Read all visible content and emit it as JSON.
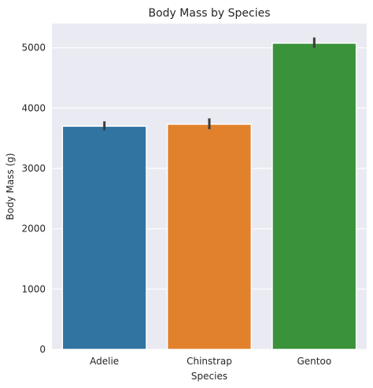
{
  "chart_data": {
    "type": "bar",
    "title": "Body Mass by Species",
    "xlabel": "Species",
    "ylabel": "Body Mass (g)",
    "categories": [
      "Adelie",
      "Chinstrap",
      "Gentoo"
    ],
    "values": [
      3700,
      3733,
      5076
    ],
    "error_bars": [
      [
        3630,
        3780
      ],
      [
        3650,
        3830
      ],
      [
        5000,
        5170
      ]
    ],
    "colors": [
      "#3274a1",
      "#e1812c",
      "#3a923a"
    ],
    "ylim": [
      0,
      5400
    ],
    "yticks": [
      0,
      1000,
      2000,
      3000,
      4000,
      5000
    ],
    "grid": true,
    "legend": "none"
  }
}
